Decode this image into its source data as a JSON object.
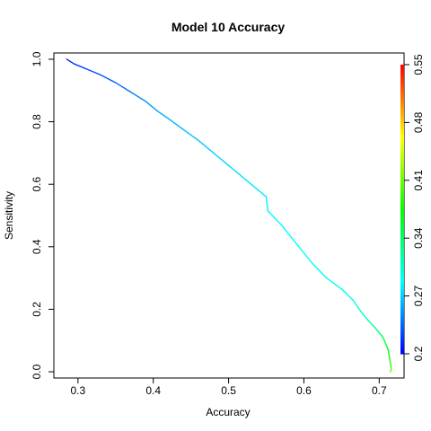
{
  "chart_data": {
    "type": "line",
    "title": "Model 10 Accuracy",
    "xlabel": "Accuracy",
    "ylabel": "Sensitivity",
    "xlim": [
      0.268,
      0.733
    ],
    "ylim": [
      -0.02,
      1.02
    ],
    "x_ticks": [
      0.3,
      0.4,
      0.5,
      0.6,
      0.7
    ],
    "x_tick_labels": [
      "0.3",
      "0.4",
      "0.5",
      "0.6",
      "0.7"
    ],
    "y_ticks": [
      0.0,
      0.2,
      0.4,
      0.6,
      0.8,
      1.0
    ],
    "y_tick_labels": [
      "0.0",
      "0.2",
      "0.4",
      "0.6",
      "0.8",
      "1.0"
    ],
    "grid": false,
    "colorbar": {
      "range": [
        0.2,
        0.55
      ],
      "ticks": [
        0.2,
        0.27,
        0.34,
        0.41,
        0.48,
        0.55
      ],
      "tick_labels": [
        "0.2",
        "0.27",
        "0.34",
        "0.41",
        "0.48",
        "0.55"
      ]
    },
    "series": [
      {
        "points": [
          [
            0.285,
            1.0,
            0.21
          ],
          [
            0.295,
            0.985,
            0.215
          ],
          [
            0.31,
            0.97,
            0.22
          ],
          [
            0.33,
            0.95,
            0.228
          ],
          [
            0.35,
            0.925,
            0.235
          ],
          [
            0.37,
            0.895,
            0.242
          ],
          [
            0.39,
            0.865,
            0.25
          ],
          [
            0.405,
            0.835,
            0.255
          ],
          [
            0.42,
            0.81,
            0.26
          ],
          [
            0.44,
            0.775,
            0.265
          ],
          [
            0.46,
            0.74,
            0.268
          ],
          [
            0.48,
            0.7,
            0.272
          ],
          [
            0.5,
            0.66,
            0.275
          ],
          [
            0.52,
            0.62,
            0.278
          ],
          [
            0.54,
            0.58,
            0.28
          ],
          [
            0.55,
            0.56,
            0.282
          ],
          [
            0.552,
            0.515,
            0.284
          ],
          [
            0.57,
            0.47,
            0.286
          ],
          [
            0.59,
            0.41,
            0.288
          ],
          [
            0.61,
            0.35,
            0.29
          ],
          [
            0.63,
            0.3,
            0.293
          ],
          [
            0.65,
            0.265,
            0.296
          ],
          [
            0.665,
            0.23,
            0.3
          ],
          [
            0.675,
            0.195,
            0.305
          ],
          [
            0.685,
            0.165,
            0.312
          ],
          [
            0.695,
            0.14,
            0.325
          ],
          [
            0.705,
            0.11,
            0.34
          ],
          [
            0.712,
            0.07,
            0.36
          ],
          [
            0.714,
            0.04,
            0.38
          ],
          [
            0.716,
            0.01,
            0.4
          ],
          [
            0.715,
            0.0,
            0.41
          ]
        ]
      }
    ]
  }
}
